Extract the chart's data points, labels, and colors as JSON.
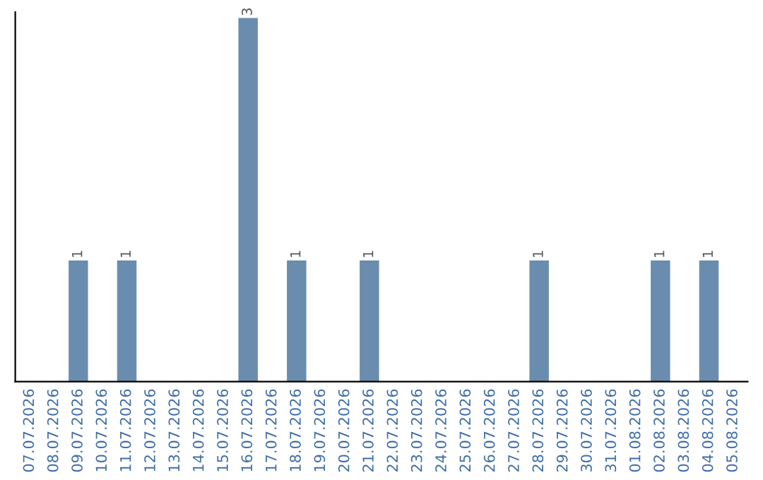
{
  "chart_data": {
    "type": "bar",
    "categories": [
      "07.07.2026",
      "08.07.2026",
      "09.07.2026",
      "10.07.2026",
      "11.07.2026",
      "12.07.2026",
      "13.07.2026",
      "14.07.2026",
      "15.07.2026",
      "16.07.2026",
      "17.07.2026",
      "18.07.2026",
      "19.07.2026",
      "20.07.2026",
      "21.07.2026",
      "22.07.2026",
      "23.07.2026",
      "24.07.2026",
      "25.07.2026",
      "26.07.2026",
      "27.07.2026",
      "28.07.2026",
      "29.07.2026",
      "30.07.2026",
      "31.07.2026",
      "01.08.2026",
      "02.08.2026",
      "03.08.2026",
      "04.08.2026",
      "05.08.2026"
    ],
    "values": [
      0,
      0,
      1,
      0,
      1,
      0,
      0,
      0,
      0,
      3,
      0,
      1,
      0,
      0,
      1,
      0,
      0,
      0,
      0,
      0,
      0,
      1,
      0,
      0,
      0,
      0,
      1,
      0,
      1,
      0
    ],
    "value_labels": [
      null,
      null,
      "1",
      null,
      "1",
      null,
      null,
      null,
      null,
      "3",
      null,
      "1",
      null,
      null,
      "1",
      null,
      null,
      null,
      null,
      null,
      null,
      "1",
      null,
      null,
      null,
      null,
      "1",
      null,
      "1",
      null
    ],
    "color": "#6a8caf",
    "ylim": [
      0,
      3.05
    ],
    "tick_labels": "x",
    "grid": false
  }
}
